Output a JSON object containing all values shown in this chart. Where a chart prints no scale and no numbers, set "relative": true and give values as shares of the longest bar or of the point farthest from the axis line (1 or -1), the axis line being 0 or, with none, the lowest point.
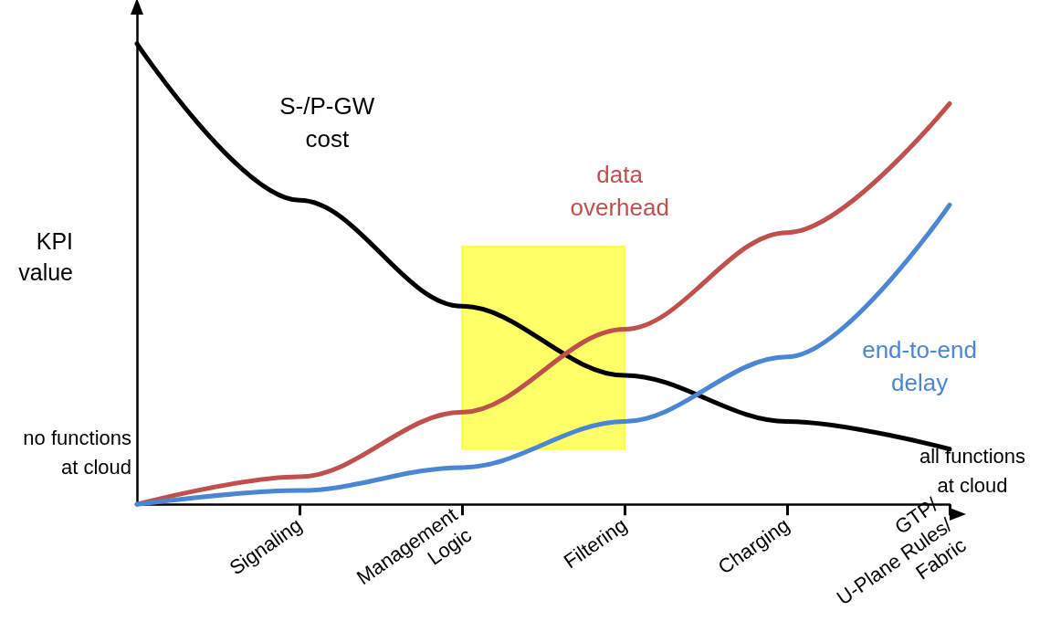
{
  "chart_data": {
    "type": "line",
    "relative": true,
    "ylabel": "KPI value",
    "categories": [
      null,
      "Signaling",
      "Management\nLogic",
      "Filtering",
      "Charging",
      "GTP/\nU-Plane Rules/\nFabric"
    ],
    "series": [
      {
        "name": "S-/P-GW\ncost",
        "color": "#000000",
        "values": [
          1.0,
          0.66,
          0.43,
          0.28,
          0.18,
          0.12
        ]
      },
      {
        "name": "data\noverhead",
        "color": "#c0504d",
        "values": [
          0,
          0.06,
          0.2,
          0.38,
          0.59,
          0.87
        ]
      },
      {
        "name": "end-to-end\ndelay",
        "color": "#4a86d4",
        "values": [
          0,
          0.03,
          0.08,
          0.18,
          0.32,
          0.65
        ]
      }
    ],
    "bands": [
      {
        "axis": "x",
        "from": "Management\nLogic",
        "to": "Filtering",
        "color": "#ffff00"
      }
    ],
    "annotations": [
      "no functions\nat cloud",
      "all functions\nat cloud"
    ],
    "legend": false,
    "grid": false,
    "marker": "none",
    "line_style": "solid"
  }
}
